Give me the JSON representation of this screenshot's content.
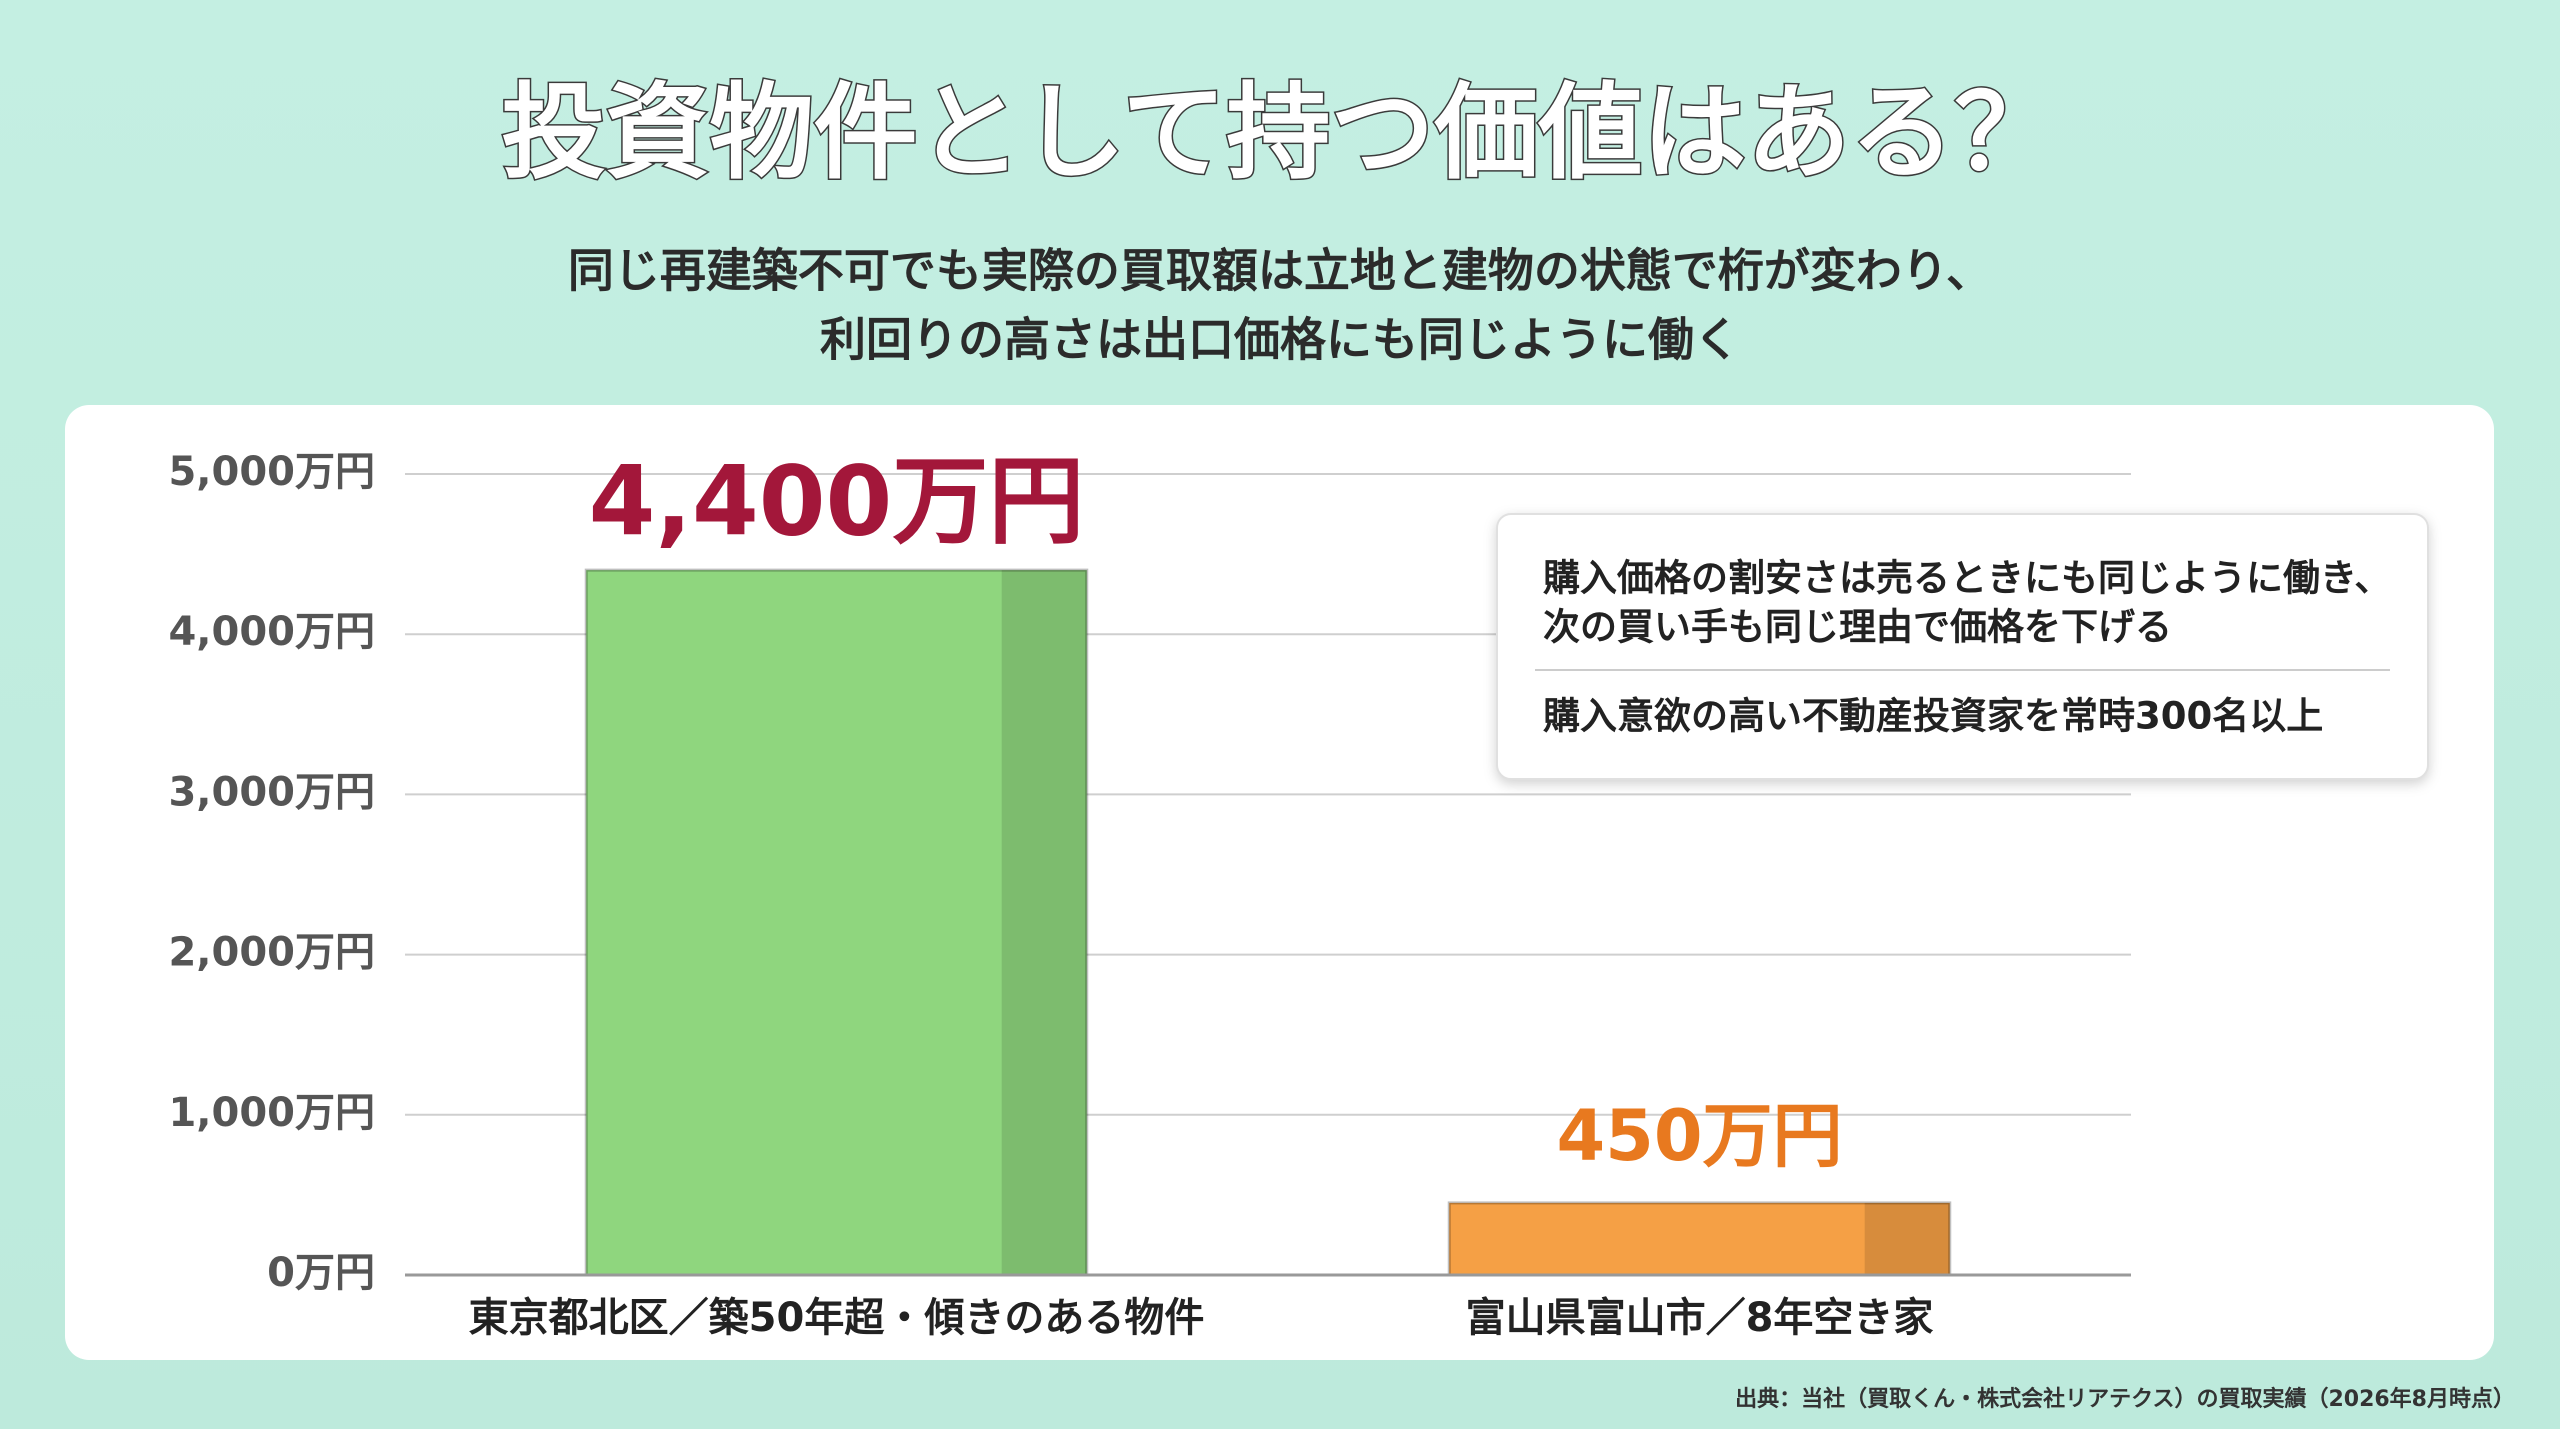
{
  "chart_data": {
    "type": "bar",
    "title": "投資物件として持つ価値はある？",
    "subtitle": [
      "同じ再建築不可でも実際の買取額は立地と建物の状態で桁が変わり、",
      "利回りの高さは出口価格にも同じように働く"
    ],
    "categories": [
      "東京都北区／築50年超・傾きのある物件",
      "富山県富山市／8年空き家"
    ],
    "values": [
      4400,
      450
    ],
    "value_labels": [
      "4,400万円",
      "450万円"
    ],
    "colors": [
      "#8fd67e",
      "#f5a045"
    ],
    "label_colors": [
      "#a3173a",
      "#e8791f"
    ],
    "ylim": [
      0,
      5000
    ],
    "yticks": [
      {
        "value": 0,
        "label": "0万円"
      },
      {
        "value": 1000,
        "label": "1,000万円"
      },
      {
        "value": 2000,
        "label": "2,000万円"
      },
      {
        "value": 3000,
        "label": "3,000万円"
      },
      {
        "value": 4000,
        "label": "4,000万円"
      },
      {
        "value": 5000,
        "label": "5,000万円"
      }
    ],
    "grid": true,
    "annotations": [
      "購入価格の割安さは売るときにも同じように働き、",
      "次の買い手も同じ理由で価格を下げる",
      "購入意欲の高い不動産投資家を常時300名以上"
    ],
    "source": "出典：当社（買取くん・株式会社リアテクス）の買取実績（2026年8月時点）"
  }
}
